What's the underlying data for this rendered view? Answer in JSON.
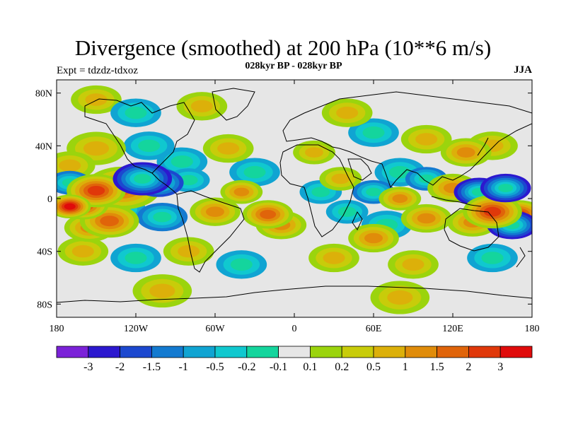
{
  "header": {
    "title": "Divergence (smoothed) at 200 hPa (10**6 m/s)",
    "subtitle": "028kyr BP - 028kyr BP",
    "experiment": "Expt = tdzdz-tdxoz",
    "season": "JJA"
  },
  "axes": {
    "lat_labels": [
      "80N",
      "40N",
      "0",
      "40S",
      "80S"
    ],
    "lon_labels": [
      "180",
      "120W",
      "60W",
      "0",
      "60E",
      "120E",
      "180"
    ]
  },
  "colorbar": {
    "labels": [
      "-3",
      "-2",
      "-1.5",
      "-1",
      "-0.5",
      "-0.2",
      "-0.1",
      "0.1",
      "0.2",
      "0.5",
      "1",
      "1.5",
      "2",
      "3"
    ],
    "colors": [
      "#7b22d8",
      "#2c18cf",
      "#1c48cf",
      "#137ad0",
      "#10a4d2",
      "#10c8cf",
      "#14d59d",
      "#e6e6e6",
      "#9bd40d",
      "#c8cc0a",
      "#dcb00a",
      "#e08c0a",
      "#e0640a",
      "#e0380a",
      "#e00b0b"
    ]
  },
  "map": {
    "type": "filled-contour",
    "variable": "Divergence (smoothed) at 200 hPa",
    "lat_range": [
      -90,
      90
    ],
    "lon_range": [
      -180,
      180
    ],
    "features": [
      {
        "lon": -150,
        "lat": 6,
        "value": 2.2,
        "r": 14
      },
      {
        "lon": -130,
        "lat": 8,
        "value": 1.5,
        "r": 18
      },
      {
        "lon": -170,
        "lat": -6,
        "value": 3.0,
        "r": 10
      },
      {
        "lon": -160,
        "lat": -5,
        "value": 2.0,
        "r": 12
      },
      {
        "lon": -140,
        "lat": -17,
        "value": 1.5,
        "r": 14
      },
      {
        "lon": -155,
        "lat": -22,
        "value": 1.2,
        "r": 12
      },
      {
        "lon": -115,
        "lat": 15,
        "value": -2.2,
        "r": 14
      },
      {
        "lon": -103,
        "lat": 12,
        "value": -1.5,
        "r": 12
      },
      {
        "lon": -170,
        "lat": 12,
        "value": -1.0,
        "r": 10
      },
      {
        "lon": -135,
        "lat": -8,
        "value": -0.8,
        "r": 14
      },
      {
        "lon": -100,
        "lat": -14,
        "value": -1.0,
        "r": 12
      },
      {
        "lon": -170,
        "lat": 25,
        "value": 0.8,
        "r": 12
      },
      {
        "lon": -150,
        "lat": 38,
        "value": 0.6,
        "r": 14
      },
      {
        "lon": -110,
        "lat": 40,
        "value": -0.5,
        "r": 12
      },
      {
        "lon": -85,
        "lat": 28,
        "value": -0.6,
        "r": 12
      },
      {
        "lon": -80,
        "lat": 14,
        "value": -0.8,
        "r": 10
      },
      {
        "lon": -60,
        "lat": -10,
        "value": 1.2,
        "r": 12
      },
      {
        "lon": -40,
        "lat": 5,
        "value": 1.0,
        "r": 10
      },
      {
        "lon": -20,
        "lat": -12,
        "value": 1.6,
        "r": 12
      },
      {
        "lon": -10,
        "lat": -20,
        "value": 1.0,
        "r": 12
      },
      {
        "lon": -30,
        "lat": 20,
        "value": -0.5,
        "r": 12
      },
      {
        "lon": -50,
        "lat": 38,
        "value": 0.6,
        "r": 12
      },
      {
        "lon": -80,
        "lat": -40,
        "value": 0.8,
        "r": 12
      },
      {
        "lon": 20,
        "lat": 5,
        "value": -0.8,
        "r": 10
      },
      {
        "lon": 35,
        "lat": 15,
        "value": 0.8,
        "r": 10
      },
      {
        "lon": 15,
        "lat": 35,
        "value": 0.8,
        "r": 10
      },
      {
        "lon": 40,
        "lat": -10,
        "value": -0.6,
        "r": 10
      },
      {
        "lon": 60,
        "lat": 5,
        "value": -1.0,
        "r": 10
      },
      {
        "lon": 80,
        "lat": 0,
        "value": 1.2,
        "r": 10
      },
      {
        "lon": 80,
        "lat": 20,
        "value": -0.7,
        "r": 12
      },
      {
        "lon": 100,
        "lat": 15,
        "value": -1.0,
        "r": 10
      },
      {
        "lon": 120,
        "lat": 8,
        "value": 1.2,
        "r": 12
      },
      {
        "lon": 140,
        "lat": 5,
        "value": -2.0,
        "r": 12
      },
      {
        "lon": 160,
        "lat": 8,
        "value": -2.6,
        "r": 12
      },
      {
        "lon": 150,
        "lat": -10,
        "value": 2.5,
        "r": 14
      },
      {
        "lon": 170,
        "lat": -12,
        "value": 2.0,
        "r": 12
      },
      {
        "lon": 135,
        "lat": -18,
        "value": 1.2,
        "r": 12
      },
      {
        "lon": 165,
        "lat": -20,
        "value": -2.2,
        "r": 12
      },
      {
        "lon": 100,
        "lat": -15,
        "value": 1.0,
        "r": 12
      },
      {
        "lon": 70,
        "lat": -20,
        "value": -0.8,
        "r": 12
      },
      {
        "lon": 60,
        "lat": -30,
        "value": 1.0,
        "r": 12
      },
      {
        "lon": 130,
        "lat": 35,
        "value": 1.0,
        "r": 12
      },
      {
        "lon": 150,
        "lat": 40,
        "value": 0.6,
        "r": 12
      },
      {
        "lon": 100,
        "lat": 45,
        "value": 0.5,
        "r": 12
      },
      {
        "lon": 60,
        "lat": 50,
        "value": -0.5,
        "r": 12
      },
      {
        "lon": 40,
        "lat": 65,
        "value": 0.6,
        "r": 12
      },
      {
        "lon": -120,
        "lat": 65,
        "value": -0.6,
        "r": 12
      },
      {
        "lon": -70,
        "lat": 70,
        "value": 0.5,
        "r": 12
      },
      {
        "lon": -150,
        "lat": 75,
        "value": 0.5,
        "r": 12
      },
      {
        "lon": -160,
        "lat": -40,
        "value": 0.6,
        "r": 12
      },
      {
        "lon": -120,
        "lat": -45,
        "value": -0.5,
        "r": 12
      },
      {
        "lon": -40,
        "lat": -50,
        "value": -0.6,
        "r": 12
      },
      {
        "lon": 30,
        "lat": -45,
        "value": 0.6,
        "r": 12
      },
      {
        "lon": 90,
        "lat": -50,
        "value": 0.8,
        "r": 12
      },
      {
        "lon": 150,
        "lat": -45,
        "value": -0.6,
        "r": 12
      },
      {
        "lon": -100,
        "lat": -70,
        "value": 0.5,
        "r": 14
      },
      {
        "lon": 80,
        "lat": -75,
        "value": 0.6,
        "r": 14
      }
    ]
  }
}
